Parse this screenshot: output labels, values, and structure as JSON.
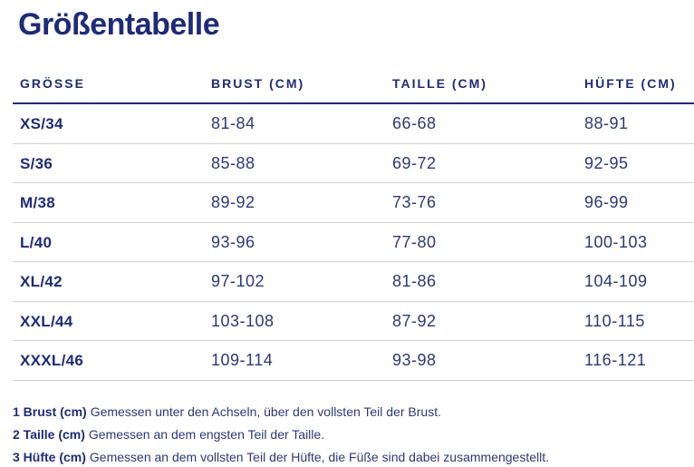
{
  "page": {
    "title": "Größentabelle"
  },
  "colors": {
    "navy": "#1e2b78",
    "value": "#2c3878",
    "separator": "#cfd1d6"
  },
  "table": {
    "headers": [
      "GRÖSSE",
      "BRUST (CM)",
      "TAILLE (CM)",
      "HÜFTE (CM)"
    ],
    "rows": [
      {
        "size": "XS/34",
        "brust": "81-84",
        "taille": "66-68",
        "huefte": "88-91"
      },
      {
        "size": "S/36",
        "brust": "85-88",
        "taille": "69-72",
        "huefte": "92-95"
      },
      {
        "size": "M/38",
        "brust": "89-92",
        "taille": "73-76",
        "huefte": "96-99"
      },
      {
        "size": "L/40",
        "brust": "93-96",
        "taille": "77-80",
        "huefte": "100-103"
      },
      {
        "size": "XL/42",
        "brust": "97-102",
        "taille": "81-86",
        "huefte": "104-109"
      },
      {
        "size": "XXL/44",
        "brust": "103-108",
        "taille": "87-92",
        "huefte": "110-115"
      },
      {
        "size": "XXXL/46",
        "brust": "109-114",
        "taille": "93-98",
        "huefte": "116-121"
      }
    ]
  },
  "notes": [
    {
      "label": "1 Brust (cm)",
      "text": "Gemessen unter den Achseln, über den vollsten Teil der Brust."
    },
    {
      "label": "2 Taille (cm)",
      "text": "Gemessen an dem engsten Teil der Taille."
    },
    {
      "label": "3 Hüfte (cm)",
      "text": "Gemessen an dem vollsten Teil der Hüfte, die Füße sind dabei zusammengestellt."
    }
  ]
}
